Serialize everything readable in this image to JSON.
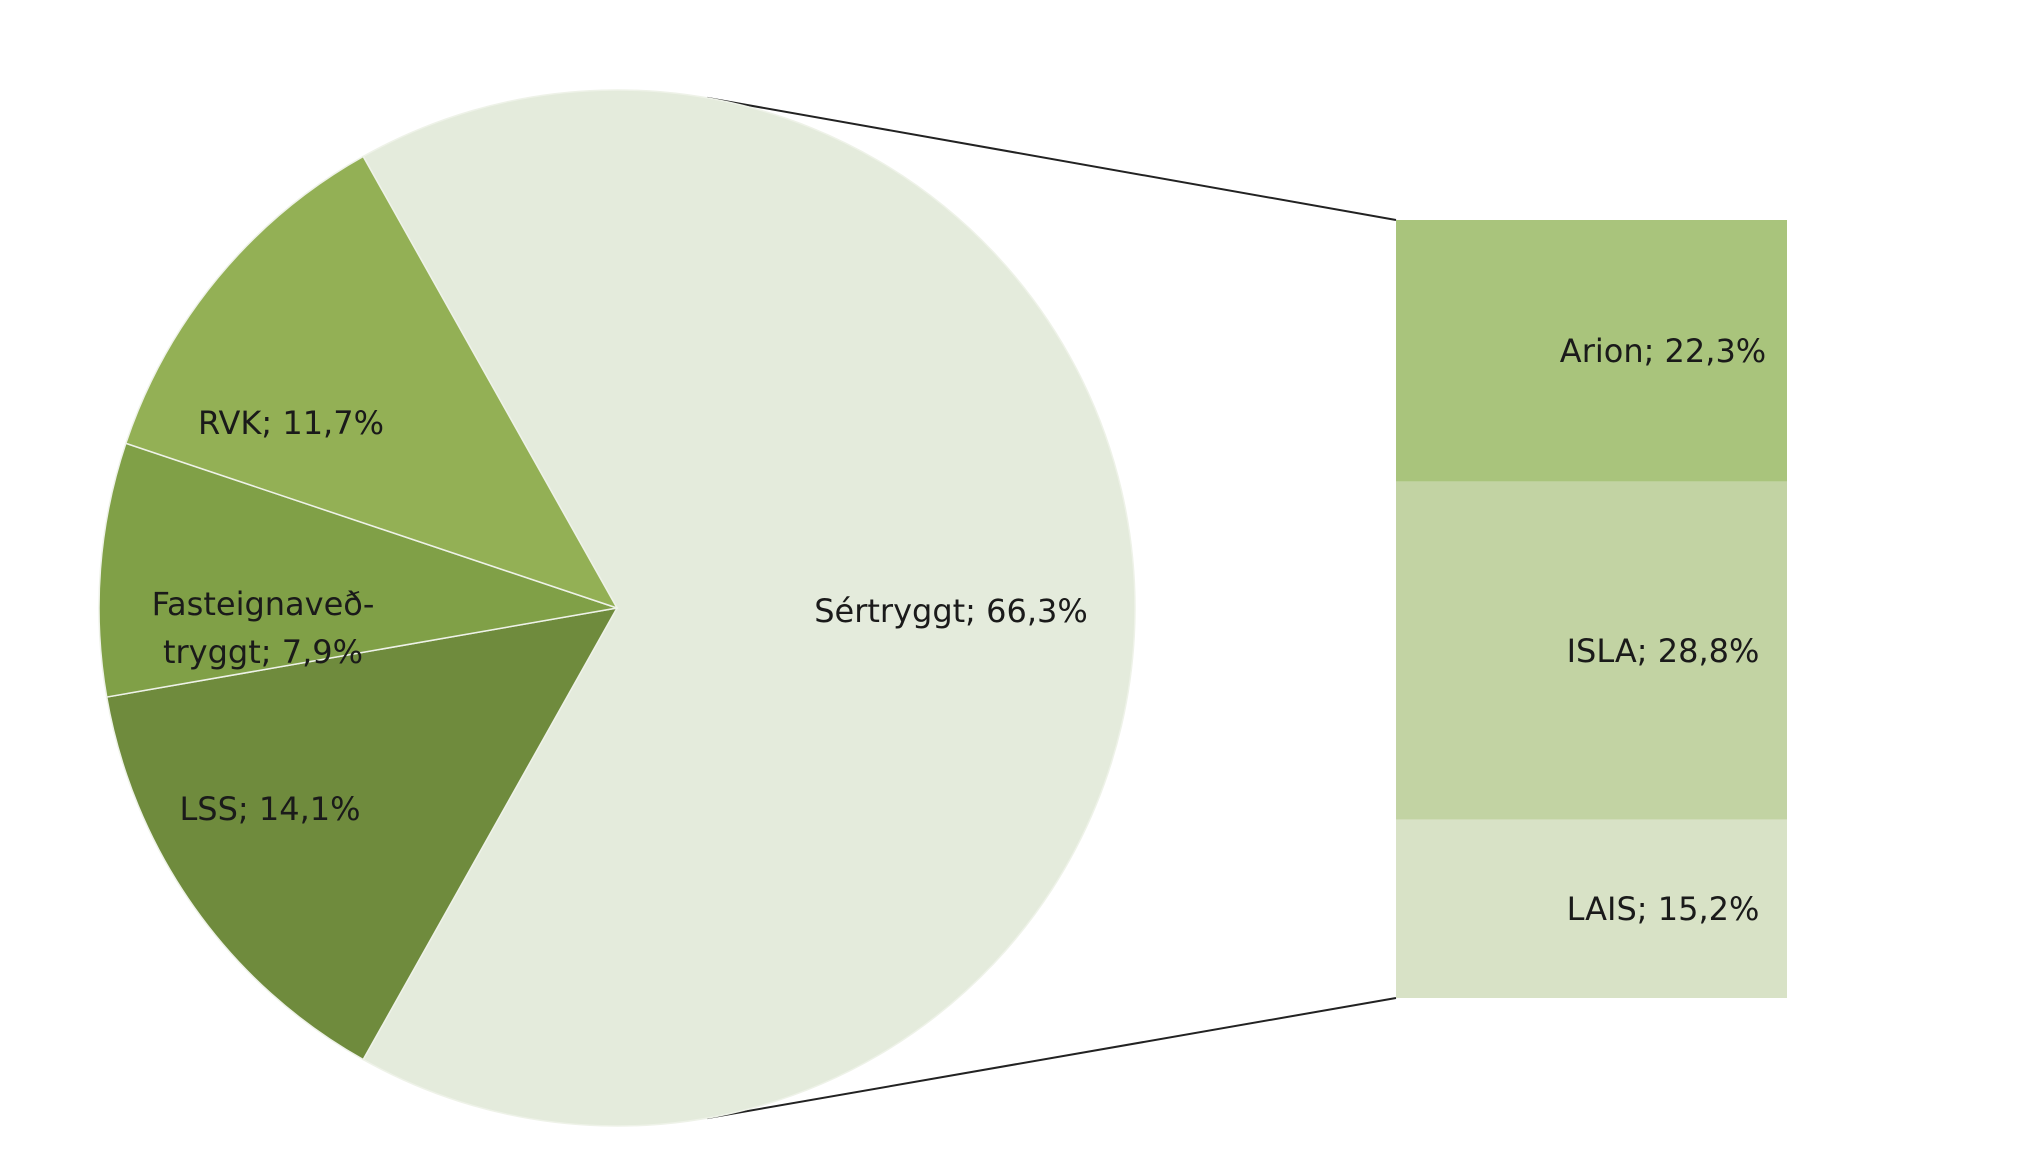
{
  "chart_data": {
    "type": "pie",
    "values": [
      66.3,
      14.1,
      7.9,
      11.7
    ],
    "value_labels": [
      "Sértryggt; 66,3%",
      "LSS; 14,1%",
      "Fasteignaveð-tryggt; 7,9%",
      "RVK; 11,7%"
    ],
    "colors": [
      "#e4ebdc",
      "#6f8b3d",
      "#80a047",
      "#93b055"
    ],
    "bar": {
      "values": [
        22.3,
        28.8,
        15.2
      ],
      "value_labels": [
        "Arion; 22,3%",
        "ISLA; 28,8%",
        "LAIS; 15,2%"
      ],
      "colors": [
        "#a9c47c",
        "#c2d3a3",
        "#d8e2c6"
      ]
    }
  }
}
